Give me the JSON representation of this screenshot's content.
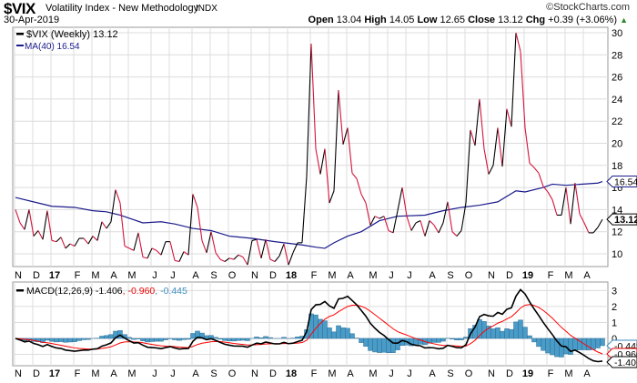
{
  "header": {
    "symbol": "$VIX",
    "name": "Volatility Index - New Methodology",
    "exchange": "INDX",
    "copyright": "©StockCharts.com",
    "date": "30-Apr-2019",
    "open_label": "Open",
    "open": "13.04",
    "high_label": "High",
    "high": "14.05",
    "low_label": "Low",
    "low": "12.65",
    "close_label": "Close",
    "close": "13.12",
    "chg_label": "Chg",
    "chg": "+0.39 (+3.06%)",
    "chg_arrow": "▲"
  },
  "colors": {
    "up": "#000000",
    "down": "#d4143c",
    "ma": "#1a1a8c",
    "macd": "#000000",
    "signal": "#ff0000",
    "hist": "#4a9cc8",
    "grid": "#dcdcdc"
  },
  "chart_data": [
    {
      "type": "line",
      "title": "$VIX (Weekly)",
      "legend": [
        {
          "label": "$VIX (Weekly) 13.12"
        },
        {
          "label": "MA(40) 16.54"
        }
      ],
      "ylim": [
        8.5,
        31
      ],
      "yticks": [
        10,
        12,
        14,
        16,
        18,
        20,
        22,
        24,
        26,
        28,
        30
      ],
      "months": [
        {
          "l": "N",
          "i": 0
        },
        {
          "l": "D",
          "i": 4
        },
        {
          "l": "17",
          "i": 8,
          "b": 1
        },
        {
          "l": "F",
          "i": 13
        },
        {
          "l": "M",
          "i": 17
        },
        {
          "l": "A",
          "i": 21
        },
        {
          "l": "M",
          "i": 25
        },
        {
          "l": "J",
          "i": 30
        },
        {
          "l": "J",
          "i": 34
        },
        {
          "l": "A",
          "i": 39
        },
        {
          "l": "S",
          "i": 43
        },
        {
          "l": "O",
          "i": 47
        },
        {
          "l": "N",
          "i": 52
        },
        {
          "l": "D",
          "i": 56
        },
        {
          "l": "18",
          "i": 60,
          "b": 1
        },
        {
          "l": "F",
          "i": 65
        },
        {
          "l": "M",
          "i": 69
        },
        {
          "l": "A",
          "i": 73
        },
        {
          "l": "M",
          "i": 78
        },
        {
          "l": "J",
          "i": 82
        },
        {
          "l": "J",
          "i": 86
        },
        {
          "l": "A",
          "i": 91
        },
        {
          "l": "S",
          "i": 95
        },
        {
          "l": "O",
          "i": 99
        },
        {
          "l": "N",
          "i": 104
        },
        {
          "l": "D",
          "i": 108
        },
        {
          "l": "19",
          "i": 112,
          "b": 1
        },
        {
          "l": "F",
          "i": 117
        },
        {
          "l": "M",
          "i": 121
        },
        {
          "l": "A",
          "i": 125
        }
      ],
      "values": [
        14.0,
        12.8,
        12.2,
        14.0,
        11.6,
        12.1,
        11.3,
        13.9,
        11.2,
        11.1,
        11.5,
        10.5,
        10.9,
        10.7,
        11.4,
        11.4,
        10.9,
        11.6,
        11.2,
        12.9,
        12.3,
        12.9,
        15.8,
        14.6,
        10.7,
        10.5,
        10.3,
        11.9,
        9.7,
        9.6,
        10.5,
        10.3,
        9.9,
        11.1,
        11.1,
        9.4,
        9.3,
        10.2,
        9.9,
        15.4,
        14.2,
        11.2,
        10.1,
        12.0,
        10.1,
        9.5,
        9.3,
        9.6,
        9.5,
        9.9,
        9.7,
        9.0,
        11.2,
        11.3,
        9.6,
        11.3,
        9.5,
        9.3,
        9.8,
        10.9,
        9.0,
        10.1,
        11.0,
        11.0,
        17.0,
        29.0,
        19.5,
        17.2,
        19.5,
        14.6,
        15.7,
        24.8,
        19.9,
        21.4,
        17.3,
        16.8,
        15.4,
        14.6,
        12.6,
        13.4,
        13.2,
        13.4,
        12.1,
        11.9,
        13.9,
        16.0,
        13.4,
        12.1,
        12.8,
        13.0,
        11.6,
        13.0,
        12.6,
        11.9,
        12.8,
        14.7,
        12.0,
        11.6,
        12.1,
        14.6,
        21.2,
        19.8,
        24.0,
        19.5,
        17.2,
        18.0,
        21.4,
        17.9,
        23.1,
        21.5,
        30.0,
        28.3,
        21.4,
        18.2,
        17.8,
        17.3,
        16.1,
        15.6,
        14.9,
        13.5,
        13.5,
        16.0,
        12.7,
        16.4,
        13.6,
        12.8,
        11.9,
        11.9,
        12.4,
        13.12
      ],
      "ma40": [
        [
          0,
          15.1
        ],
        [
          5,
          14.6
        ],
        [
          8,
          14.3
        ],
        [
          13,
          14.2
        ],
        [
          17,
          13.9
        ],
        [
          20,
          13.8
        ],
        [
          23,
          13.5
        ],
        [
          28,
          12.8
        ],
        [
          32,
          12.9
        ],
        [
          35,
          12.7
        ],
        [
          39,
          12.3
        ],
        [
          43,
          12.1
        ],
        [
          47,
          11.6
        ],
        [
          52,
          11.4
        ],
        [
          57,
          11.1
        ],
        [
          63,
          10.8
        ],
        [
          66,
          10.6
        ],
        [
          68,
          10.5
        ],
        [
          70,
          11.0
        ],
        [
          73,
          11.6
        ],
        [
          76,
          12.0
        ],
        [
          80,
          13.0
        ],
        [
          84,
          13.4
        ],
        [
          90,
          13.5
        ],
        [
          94,
          13.9
        ],
        [
          98,
          14.2
        ],
        [
          102,
          14.4
        ],
        [
          106,
          14.7
        ],
        [
          110,
          15.7
        ],
        [
          112,
          15.6
        ],
        [
          116,
          16.0
        ],
        [
          118,
          16.3
        ],
        [
          121,
          16.2
        ],
        [
          128,
          16.4
        ],
        [
          129,
          16.54
        ]
      ],
      "last_labels": {
        "ma": "16.54",
        "close": "13.12"
      }
    },
    {
      "type": "line",
      "title": "MACD(12,26,9)",
      "legend": {
        "name": "MACD(12,26,9)",
        "macd": "-1.406",
        "signal": "-0.960",
        "hist": "-0.445"
      },
      "ylim": [
        -1.75,
        3.3
      ],
      "yticks": [
        0,
        1,
        2,
        3
      ]
    }
  ]
}
